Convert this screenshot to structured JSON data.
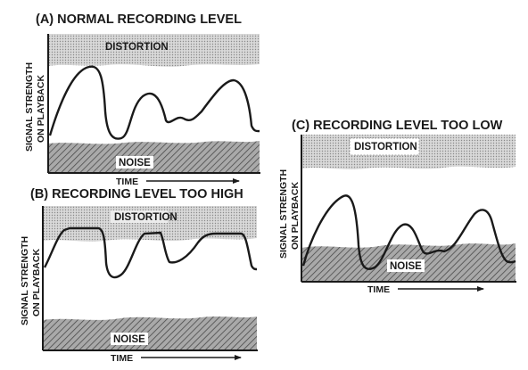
{
  "colors": {
    "ink": "#1a1a1a",
    "distortion_fill": "#d2d2d2",
    "noise_fill": "#8e8e8e",
    "background": "#ffffff"
  },
  "panels": [
    {
      "id": "a",
      "title": "(A)  NORMAL RECORDING LEVEL",
      "distortion_label": "DISTORTION",
      "noise_label": "NOISE",
      "ylabel_line1": "SIGNAL STRENGTH",
      "ylabel_line2": "ON PLAYBACK",
      "xlabel": "TIME"
    },
    {
      "id": "b",
      "title": "(B)  RECORDING LEVEL TOO HIGH",
      "distortion_label": "DISTORTION",
      "noise_label": "NOISE",
      "ylabel_line1": "SIGNAL STRENGTH",
      "ylabel_line2": "ON PLAYBACK",
      "xlabel": "TIME"
    },
    {
      "id": "c",
      "title": "(C)  RECORDING LEVEL TOO LOW",
      "distortion_label": "DISTORTION",
      "noise_label": "NOISE",
      "ylabel_line1": "SIGNAL STRENGTH",
      "ylabel_line2": "ON PLAYBACK",
      "xlabel": "TIME"
    }
  ]
}
